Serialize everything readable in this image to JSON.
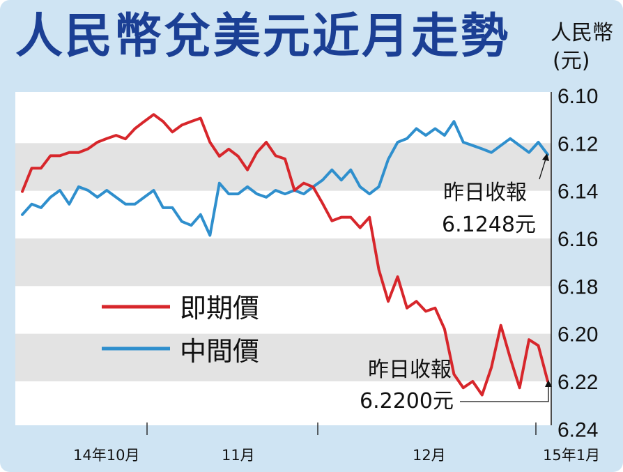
{
  "title": "人民幣兌美元近月走勢",
  "unit_line1": "人民幣",
  "unit_line2": "(元)",
  "colors": {
    "spot": "#d7262b",
    "central": "#2f8fcd",
    "title": "#1b3f94"
  },
  "chart_data": {
    "type": "line",
    "ylim": [
      6.1,
      6.24
    ],
    "y_axis": "inverted",
    "y_ticks": [
      "6.10",
      "6.12",
      "6.14",
      "6.16",
      "6.18",
      "6.20",
      "6.22",
      "6.24"
    ],
    "x_ticks": [
      "14年10月",
      "11月",
      "12月",
      "15年1月"
    ],
    "grid_bands": true,
    "legend_placement": "left-middle",
    "series": [
      {
        "name": "即期價",
        "color": "#d7262b",
        "values": [
          6.1403,
          6.1305,
          6.1305,
          6.1253,
          6.1253,
          6.1239,
          6.1239,
          6.1224,
          6.1196,
          6.1181,
          6.1167,
          6.1182,
          6.1139,
          6.1109,
          6.108,
          6.1109,
          6.1153,
          6.1124,
          6.1109,
          6.1095,
          6.1196,
          6.1255,
          6.1225,
          6.1255,
          6.1312,
          6.1239,
          6.1196,
          6.1253,
          6.1266,
          6.1398,
          6.1368,
          6.1384,
          6.1453,
          6.1526,
          6.1511,
          6.1511,
          6.1555,
          6.1511,
          6.1731,
          6.1864,
          6.1761,
          6.1892,
          6.1864,
          6.1906,
          6.1892,
          6.198,
          6.217,
          6.2227,
          6.22,
          6.2257,
          6.2141,
          6.1965,
          6.2101,
          6.2227,
          6.2025,
          6.205,
          6.22
        ]
      },
      {
        "name": "中間價",
        "color": "#2f8fcd",
        "values": [
          6.15,
          6.1456,
          6.1471,
          6.1427,
          6.1398,
          6.1456,
          6.1383,
          6.1398,
          6.1427,
          6.1398,
          6.1427,
          6.1456,
          6.1456,
          6.1427,
          6.1398,
          6.1471,
          6.1471,
          6.1529,
          6.1545,
          6.15,
          6.1587,
          6.1368,
          6.1413,
          6.1413,
          6.1383,
          6.1413,
          6.1427,
          6.1398,
          6.1413,
          6.1398,
          6.1413,
          6.1383,
          6.1355,
          6.1312,
          6.1355,
          6.1312,
          6.1383,
          6.1413,
          6.1383,
          6.1268,
          6.1196,
          6.1181,
          6.1139,
          6.1167,
          6.1139,
          6.1167,
          6.1109,
          6.1196,
          6.121,
          6.1224,
          6.1239,
          6.121,
          6.1181,
          6.121,
          6.1239,
          6.1196,
          6.1248
        ]
      }
    ],
    "annotations": [
      {
        "line1": "昨日收報",
        "line2": "6.1248元",
        "series": "中間價"
      },
      {
        "line1": "昨日收報",
        "line2": "6.2200元",
        "series": "即期價"
      }
    ]
  }
}
